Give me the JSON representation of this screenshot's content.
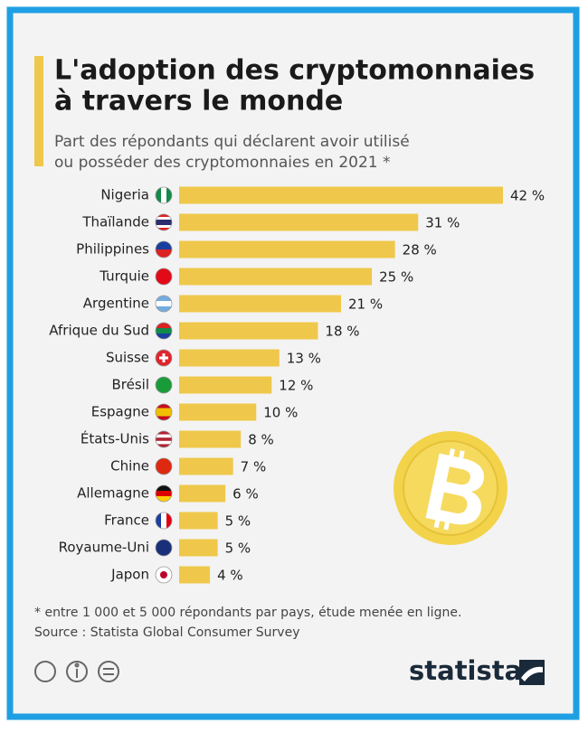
{
  "chart_data": {
    "type": "bar",
    "orientation": "horizontal",
    "title": [
      "L'adoption des cryptomonnaies",
      "à travers le monde"
    ],
    "subtitle": [
      "Part des répondants qui déclarent avoir utilisé",
      "ou posséder des cryptomonnaies en 2021 *"
    ],
    "categories": [
      "Nigeria",
      "Thaïlande",
      "Philippines",
      "Turquie",
      "Argentine",
      "Afrique du Sud",
      "Suisse",
      "Brésil",
      "Espagne",
      "États-Unis",
      "Chine",
      "Allemagne",
      "France",
      "Royaume-Uni",
      "Japon"
    ],
    "values": [
      42,
      31,
      28,
      25,
      21,
      18,
      13,
      12,
      10,
      8,
      7,
      6,
      5,
      5,
      4
    ],
    "value_labels": [
      "42 %",
      "31 %",
      "28 %",
      "25 %",
      "21 %",
      "18 %",
      "13 %",
      "12 %",
      "10 %",
      "8 %",
      "7 %",
      "6 %",
      "5 %",
      "5 %",
      "4 %"
    ],
    "color": "#efc84b",
    "footnote": "* entre 1 000 et 5 000 répondants par pays, étude menée en ligne.",
    "source": "Source : Statista Global Consumer Survey",
    "brand": "statista"
  }
}
